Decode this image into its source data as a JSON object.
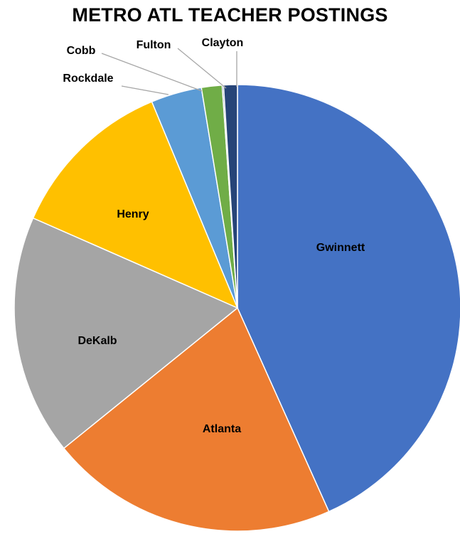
{
  "chart_data": {
    "type": "pie",
    "title": "METRO ATL TEACHER POSTINGS",
    "start_angle_deg": 0,
    "direction": "clockwise",
    "slices": [
      {
        "label": "Gwinnett",
        "value": 43.5,
        "color": "#4472C4"
      },
      {
        "label": "Atlanta",
        "value": 21.0,
        "color": "#ED7D31"
      },
      {
        "label": "DeKalb",
        "value": 17.5,
        "color": "#A5A5A5"
      },
      {
        "label": "Henry",
        "value": 12.2,
        "color": "#FFC000"
      },
      {
        "label": "Rockdale",
        "value": 3.7,
        "color": "#5B9BD5"
      },
      {
        "label": "Cobb",
        "value": 1.5,
        "color": "#70AD47"
      },
      {
        "label": "Fulton",
        "value": 0.1,
        "color": "#264478"
      },
      {
        "label": "Clayton",
        "value": 1.0,
        "color": "#264478"
      }
    ],
    "legend": "none",
    "label_style": "category names on slices, leader lines for small slices"
  }
}
